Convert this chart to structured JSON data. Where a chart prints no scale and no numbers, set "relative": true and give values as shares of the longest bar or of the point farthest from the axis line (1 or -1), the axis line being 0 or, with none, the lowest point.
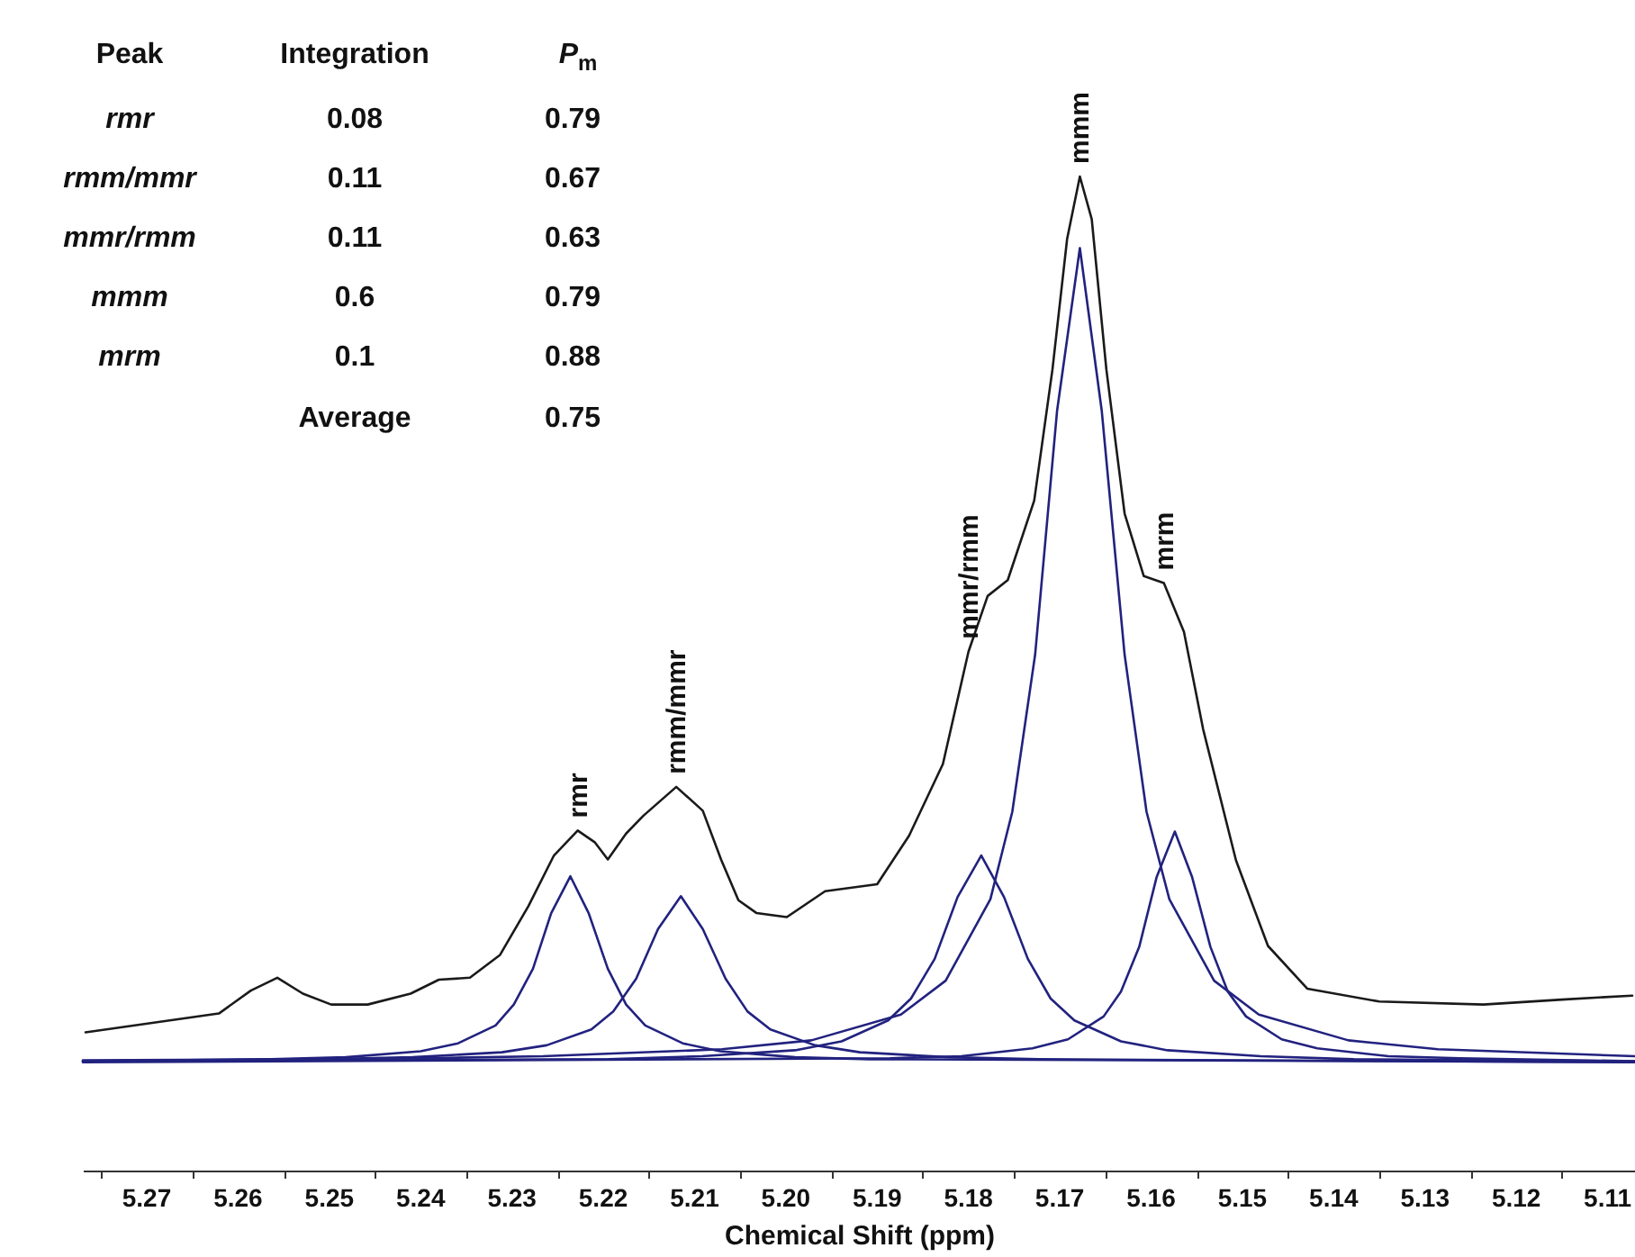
{
  "chart_data": [
    {
      "type": "line",
      "relative": true,
      "xlabel": "Chemical Shift (ppm)",
      "xlim": [
        5.277,
        5.107
      ],
      "xticks": [
        5.27,
        {
          "value": 5.275,
          "label": null
        },
        {
          "value": 5.265,
          "label": null
        },
        5.26,
        {
          "value": 5.255,
          "label": null
        },
        5.25,
        {
          "value": 5.245,
          "label": null
        },
        5.24,
        {
          "value": 5.235,
          "label": null
        },
        5.23,
        {
          "value": 5.225,
          "label": null
        },
        5.22,
        {
          "value": 5.215,
          "label": null
        },
        5.21,
        {
          "value": 5.205,
          "label": null
        },
        {
          "value": 5.2,
          "label": "5.20"
        },
        {
          "value": 5.195,
          "label": null
        },
        5.19,
        {
          "value": 5.185,
          "label": null
        },
        5.18,
        {
          "value": 5.175,
          "label": null
        },
        5.17,
        {
          "value": 5.165,
          "label": null
        },
        5.16,
        {
          "value": 5.155,
          "label": null
        },
        5.15,
        {
          "value": 5.145,
          "label": null
        },
        5.14,
        {
          "value": 5.135,
          "label": null
        },
        5.13,
        {
          "value": 5.125,
          "label": null
        },
        5.12,
        {
          "value": 5.115,
          "label": null
        },
        5.11
      ],
      "series": [
        {
          "color": "#1a1a1a",
          "x": [
            5.2767,
            5.2621,
            5.2586,
            5.2557,
            5.2529,
            5.2498,
            5.2458,
            5.2411,
            5.238,
            5.2346,
            5.2313,
            5.2282,
            5.2254,
            5.2228,
            5.2209,
            5.2195,
            5.2175,
            5.2156,
            5.212,
            5.2091,
            5.2071,
            5.2052,
            5.2032,
            5.1999,
            5.1957,
            5.19,
            5.1865,
            5.1828,
            5.18,
            5.1779,
            5.1757,
            5.1728,
            5.1708,
            5.1692,
            5.1678,
            5.1665,
            5.1649,
            5.1629,
            5.1608,
            5.1586,
            5.1564,
            5.1543,
            5.1507,
            5.1472,
            5.1429,
            5.135,
            5.1236,
            5.115,
            5.1073
          ],
          "values": [
            0.139,
            0.158,
            0.181,
            0.194,
            0.178,
            0.167,
            0.167,
            0.178,
            0.192,
            0.194,
            0.217,
            0.266,
            0.317,
            0.342,
            0.33,
            0.313,
            0.339,
            0.357,
            0.386,
            0.362,
            0.313,
            0.272,
            0.259,
            0.255,
            0.281,
            0.288,
            0.337,
            0.409,
            0.522,
            0.578,
            0.594,
            0.674,
            0.806,
            0.937,
            1,
            0.957,
            0.806,
            0.661,
            0.598,
            0.591,
            0.542,
            0.444,
            0.312,
            0.226,
            0.183,
            0.17,
            0.167,
            0.172,
            0.176
          ]
        },
        {
          "color": "#22227f",
          "x": [
            5.277,
            5.2564,
            5.2482,
            5.24,
            5.2359,
            5.2318,
            5.2298,
            5.2277,
            5.2257,
            5.2236,
            5.2216,
            5.2195,
            5.2175,
            5.2154,
            5.2113,
            5.2072,
            5.199,
            5.1908,
            5.107
          ],
          "values": [
            0.11,
            0.112,
            0.114,
            0.12,
            0.128,
            0.146,
            0.167,
            0.203,
            0.259,
            0.296,
            0.259,
            0.203,
            0.167,
            0.146,
            0.128,
            0.12,
            0.114,
            0.112,
            0.109
          ]
        },
        {
          "color": "#22227f",
          "x": [
            5.277,
            5.2507,
            5.2409,
            5.2311,
            5.2262,
            5.2213,
            5.2189,
            5.2164,
            5.214,
            5.2115,
            5.2091,
            5.2066,
            5.2042,
            5.2017,
            5.1968,
            5.1919,
            5.1821,
            5.1723,
            5.107
          ],
          "values": [
            0.11,
            0.112,
            0.114,
            0.119,
            0.126,
            0.142,
            0.16,
            0.193,
            0.243,
            0.276,
            0.243,
            0.193,
            0.16,
            0.142,
            0.126,
            0.119,
            0.114,
            0.112,
            0.109
          ]
        },
        {
          "color": "#22227f",
          "x": [
            5.277,
            5.2194,
            5.2092,
            5.199,
            5.1939,
            5.1888,
            5.1863,
            5.1837,
            5.1812,
            5.1786,
            5.1761,
            5.1735,
            5.171,
            5.1684,
            5.1633,
            5.1582,
            5.148,
            5.1378,
            5.107
          ],
          "values": [
            0.11,
            0.112,
            0.115,
            0.121,
            0.13,
            0.151,
            0.173,
            0.213,
            0.275,
            0.317,
            0.275,
            0.213,
            0.173,
            0.151,
            0.13,
            0.121,
            0.115,
            0.112,
            0.11
          ]
        },
        {
          "color": "#22227f",
          "x": [
            5.277,
            5.2462,
            5.2266,
            5.207,
            5.1972,
            5.1874,
            5.1825,
            5.1776,
            5.1752,
            5.1727,
            5.1703,
            5.1678,
            5.1654,
            5.1629,
            5.1605,
            5.158,
            5.1531,
            5.1482,
            5.1384,
            5.1286,
            5.107
          ],
          "values": [
            0.111,
            0.112,
            0.115,
            0.122,
            0.131,
            0.157,
            0.191,
            0.273,
            0.361,
            0.519,
            0.764,
            0.928,
            0.764,
            0.519,
            0.361,
            0.273,
            0.191,
            0.157,
            0.131,
            0.122,
            0.115
          ]
        },
        {
          "color": "#22227f",
          "x": [
            5.277,
            5.1886,
            5.1808,
            5.173,
            5.1691,
            5.1652,
            5.1633,
            5.1613,
            5.1594,
            5.1574,
            5.1555,
            5.1535,
            5.1516,
            5.1496,
            5.1457,
            5.1418,
            5.134,
            5.1262,
            5.107
          ],
          "values": [
            0.109,
            0.113,
            0.115,
            0.123,
            0.132,
            0.155,
            0.18,
            0.225,
            0.295,
            0.341,
            0.295,
            0.225,
            0.18,
            0.155,
            0.132,
            0.123,
            0.115,
            0.113,
            0.11
          ]
        }
      ],
      "annotations": [
        {
          "text": "rmr",
          "x": 5.2228,
          "y": 0.342
        },
        {
          "text": "rmm/mmr",
          "x": 5.212,
          "y": 0.386
        },
        {
          "text": "mmr/rmm",
          "x": 5.18,
          "y": 0.522
        },
        {
          "text": "mmm",
          "x": 5.1678,
          "y": 1
        },
        {
          "text": "mrm",
          "x": 5.1586,
          "y": 0.591
        }
      ]
    },
    {
      "type": "other",
      "annotations": [
        "Peak",
        "Integration",
        "P$_{m}$",
        "rmr",
        "0.08",
        "0.79",
        "rmm/mmr",
        "0.11",
        "0.67",
        "mmr/rmm",
        "0.11",
        "0.63",
        "mmm",
        "0.6",
        "0.79",
        "mrm",
        "0.1",
        "0.88",
        "Average",
        "0.75"
      ]
    }
  ]
}
